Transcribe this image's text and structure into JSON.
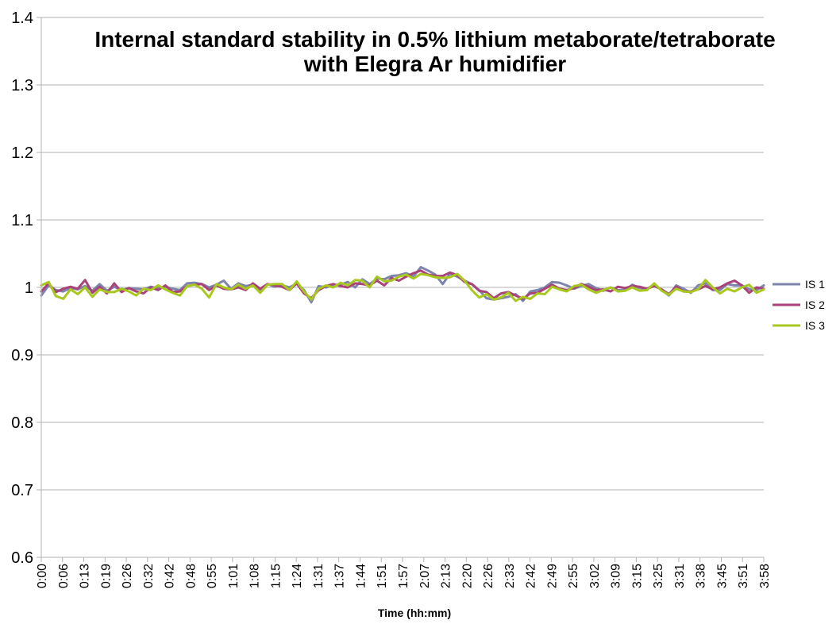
{
  "chart_data": {
    "type": "line",
    "title_lines": [
      "Internal standard stability in 0.5% lithium metaborate/tetraborate",
      "with Elegra Ar humidifier"
    ],
    "xlabel": "Time (hh:mm)",
    "ylabel": "",
    "ylim": [
      0.6,
      1.4
    ],
    "yticks": [
      "0.6",
      "0.7",
      "0.8",
      "0.9",
      "1",
      "1.1",
      "1.2",
      "1.3",
      "1.4"
    ],
    "grid": "horizontal",
    "legend_position": "right",
    "x_tick_labels": [
      "0:00",
      "0:06",
      "0:13",
      "0:19",
      "0:26",
      "0:32",
      "0:42",
      "0:48",
      "0:55",
      "1:01",
      "1:08",
      "1:15",
      "1:24",
      "1:31",
      "1:37",
      "1:44",
      "1:51",
      "1:57",
      "2:07",
      "2:13",
      "2:20",
      "2:26",
      "2:33",
      "2:42",
      "2:49",
      "2:55",
      "3:02",
      "3:09",
      "3:15",
      "3:25",
      "3:31",
      "3:38",
      "3:45",
      "3:51",
      "3:58"
    ],
    "series": [
      {
        "name": "IS 1",
        "color": "#7e84ac",
        "values": [
          0.988,
          1.003,
          0.996,
          0.994,
          0.999,
          0.997,
          1.002,
          0.995,
          1.005,
          0.995,
          1.001,
          0.996,
          0.999,
          0.998,
          0.997,
          1.001,
          0.999,
          1.001,
          0.998,
          0.996,
          1.006,
          1.007,
          1.005,
          1.0,
          1.004,
          1.01,
          0.998,
          1.006,
          1.002,
          1.004,
          0.996,
          1.005,
          1.001,
          1.003,
          1.0,
          1.006,
          0.996,
          0.978,
          1.002,
          1.0,
          1.003,
          1.004,
          1.008,
          1.0,
          1.012,
          1.005,
          1.013,
          1.012,
          1.017,
          1.018,
          1.021,
          1.016,
          1.03,
          1.025,
          1.019,
          1.005,
          1.02,
          1.016,
          1.01,
          1.005,
          0.996,
          0.984,
          0.982,
          0.984,
          0.986,
          0.99,
          0.98,
          0.994,
          0.996,
          1.0,
          1.008,
          1.007,
          1.003,
          0.998,
          1.002,
          1.005,
          0.999,
          0.995,
          1.0,
          0.996,
          0.996,
          1.004,
          0.999,
          0.998,
          1.004,
          0.996,
          0.988,
          1.003,
          0.998,
          0.992,
          1.003,
          1.006,
          0.996,
          0.996,
          1.005,
          1.003,
          1.003,
          0.997,
          0.996,
          1.003
        ]
      },
      {
        "name": "IS 2",
        "color": "#a9437a",
        "values": [
          0.994,
          1.006,
          0.993,
          0.998,
          1.001,
          0.998,
          1.011,
          0.992,
          1.001,
          0.991,
          1.006,
          0.993,
          0.999,
          0.994,
          0.991,
          1.0,
          0.996,
          1.003,
          0.993,
          0.994,
          1.002,
          1.004,
          1.005,
          0.996,
          1.003,
          0.998,
          0.997,
          1.0,
          0.996,
          1.006,
          0.998,
          1.005,
          1.003,
          1.001,
          0.996,
          1.006,
          0.991,
          0.984,
          0.996,
          1.002,
          1.005,
          1.002,
          1.0,
          1.006,
          1.005,
          1.003,
          1.01,
          1.003,
          1.014,
          1.01,
          1.016,
          1.021,
          1.025,
          1.019,
          1.017,
          1.017,
          1.022,
          1.018,
          1.008,
          1.005,
          0.995,
          0.993,
          0.984,
          0.991,
          0.993,
          0.988,
          0.983,
          0.991,
          0.992,
          0.998,
          1.004,
          0.998,
          0.996,
          0.999,
          1.005,
          1.001,
          0.996,
          0.997,
          0.994,
          1.001,
          0.999,
          1.002,
          1.001,
          0.998,
          1.002,
          0.997,
          0.99,
          1.001,
          0.994,
          0.994,
          0.997,
          1.002,
          0.997,
          1.0,
          1.006,
          1.01,
          1.003,
          0.992,
          1.0,
          0.998
        ]
      },
      {
        "name": "IS 3",
        "color": "#a8c81e",
        "values": [
          1.003,
          1.008,
          0.987,
          0.983,
          0.997,
          0.99,
          1.0,
          0.986,
          0.997,
          0.993,
          0.993,
          0.998,
          0.994,
          0.988,
          0.998,
          0.996,
          1.003,
          0.997,
          0.992,
          0.988,
          1.002,
          1.004,
          0.998,
          0.985,
          1.005,
          1.0,
          0.997,
          1.004,
          0.998,
          1.003,
          0.992,
          1.004,
          1.005,
          1.005,
          0.996,
          1.009,
          0.994,
          0.982,
          0.998,
          1.003,
          1.0,
          1.007,
          1.003,
          1.011,
          1.01,
          1.0,
          1.016,
          1.009,
          1.01,
          1.016,
          1.019,
          1.013,
          1.02,
          1.018,
          1.015,
          1.014,
          1.015,
          1.02,
          1.01,
          0.996,
          0.985,
          0.99,
          0.982,
          0.985,
          0.992,
          0.98,
          0.986,
          0.983,
          0.991,
          0.99,
          1.001,
          0.997,
          0.994,
          1.002,
          1.004,
          0.997,
          0.992,
          0.996,
          1.0,
          0.994,
          0.995,
          1.0,
          0.995,
          0.996,
          1.006,
          0.995,
          0.989,
          0.998,
          0.994,
          0.993,
          0.997,
          1.011,
          1.0,
          0.991,
          0.998,
          0.994,
          1.0,
          1.004,
          0.992,
          0.997
        ]
      }
    ]
  }
}
